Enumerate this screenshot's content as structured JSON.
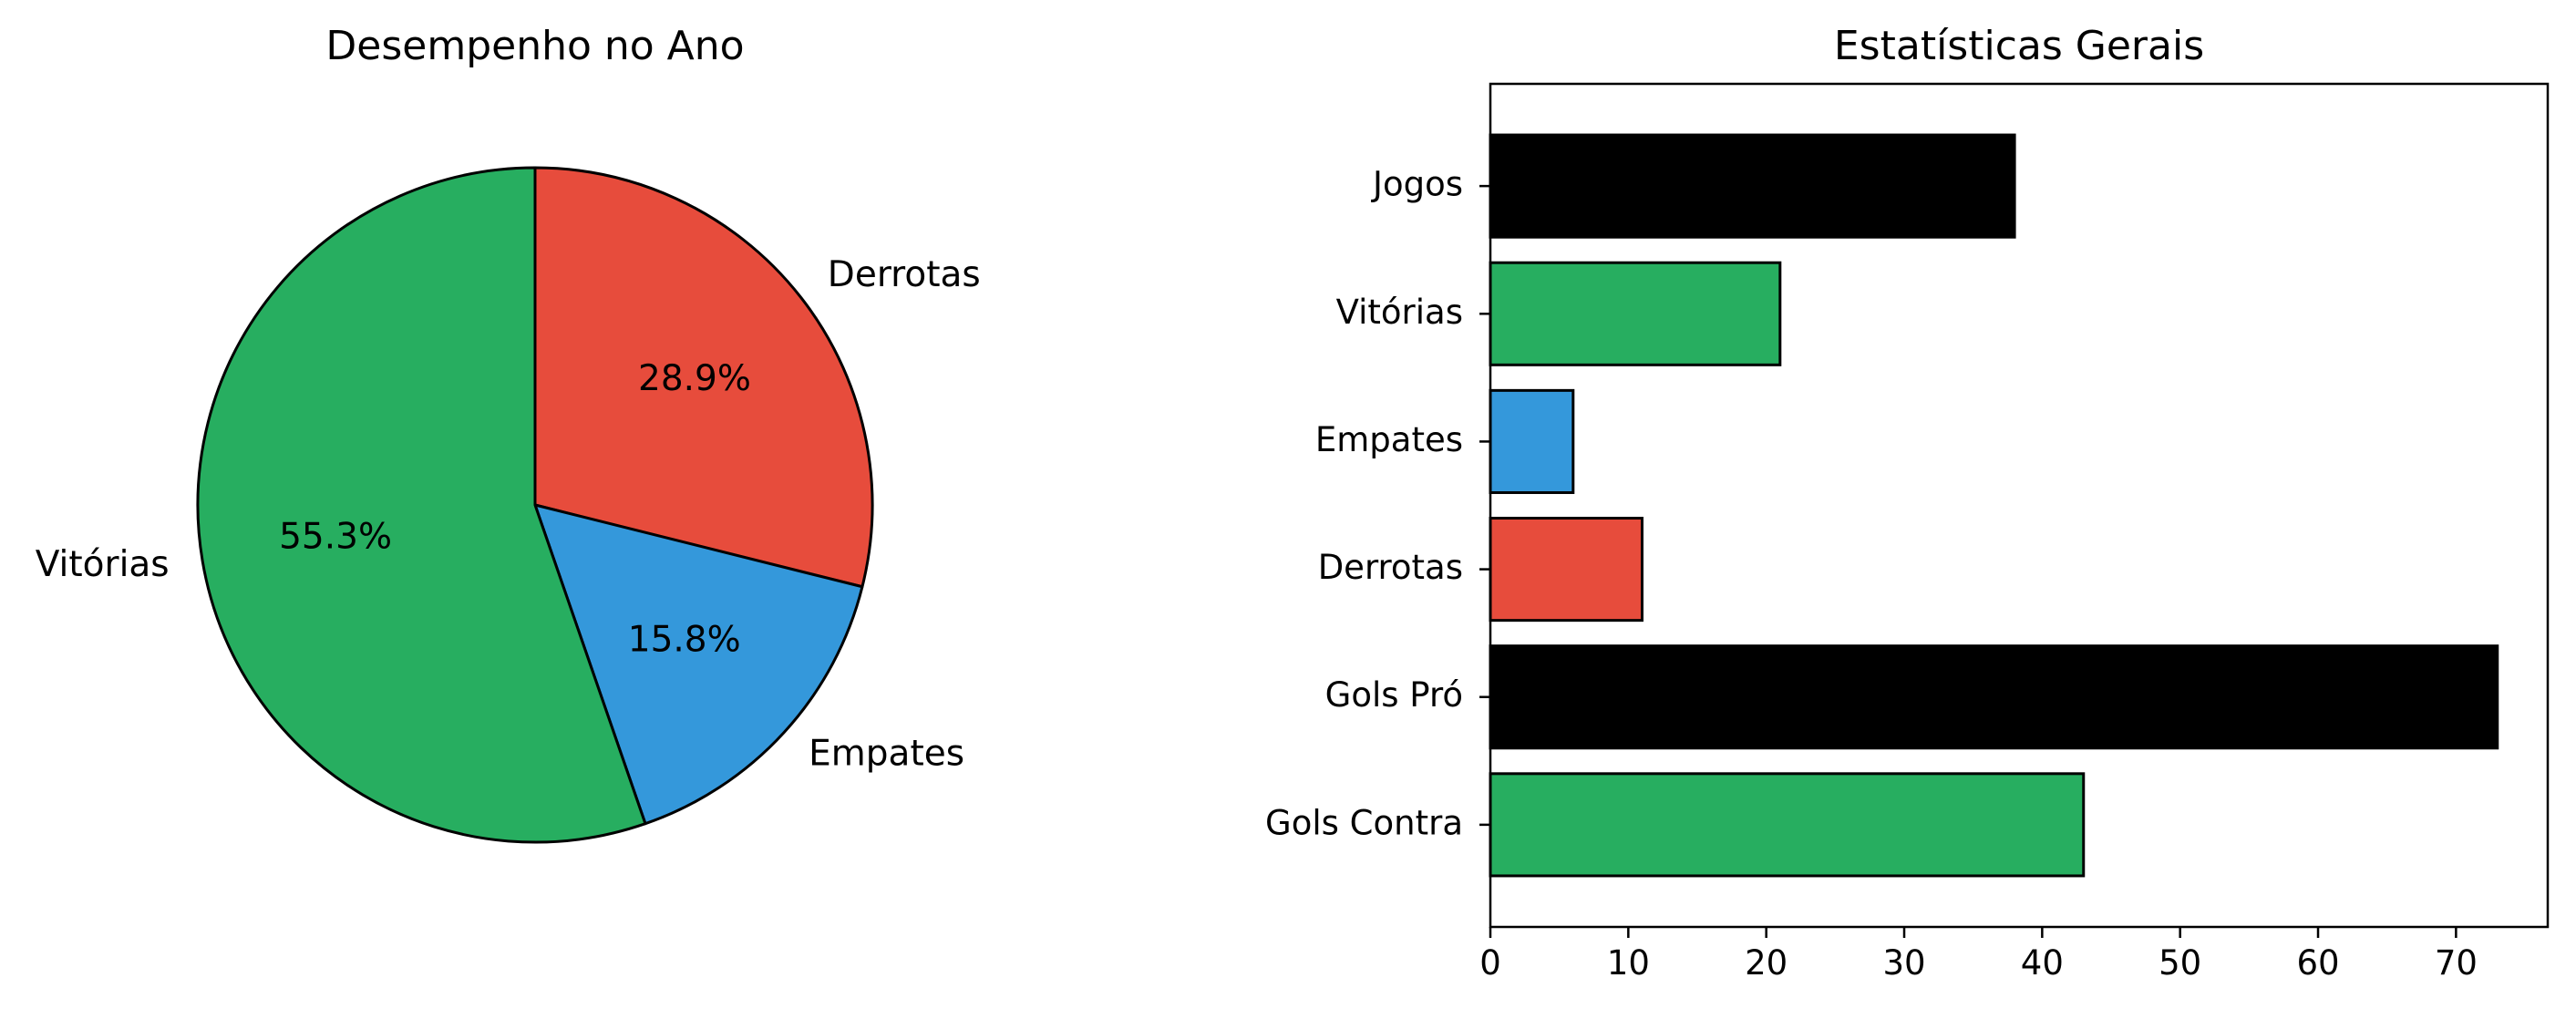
{
  "chart_data": [
    {
      "type": "pie",
      "title": "Desempenho no Ano",
      "start_angle_deg": 90,
      "direction": "clockwise",
      "slices": [
        {
          "label": "Derrotas",
          "value": 28.9,
          "pct_label": "28.9%",
          "color": "#e74c3c"
        },
        {
          "label": "Empates",
          "value": 15.8,
          "pct_label": "15.8%",
          "color": "#3498db"
        },
        {
          "label": "Vitórias",
          "value": 55.3,
          "pct_label": "55.3%",
          "color": "#27ae60"
        }
      ]
    },
    {
      "type": "bar",
      "orientation": "horizontal",
      "title": "Estatísticas Gerais",
      "categories": [
        "Jogos",
        "Vitórias",
        "Empates",
        "Derrotas",
        "Gols Pró",
        "Gols Contra"
      ],
      "values": [
        38,
        21,
        6,
        11,
        73,
        43
      ],
      "colors": [
        "#000000",
        "#27ae60",
        "#3498db",
        "#e74c3c",
        "#000000",
        "#27ae60"
      ],
      "xlim": [
        0,
        76.65
      ],
      "xticks": [
        0,
        10,
        20,
        30,
        40,
        50,
        60,
        70
      ],
      "xlabel": "",
      "ylabel": "",
      "grid": false
    }
  ]
}
